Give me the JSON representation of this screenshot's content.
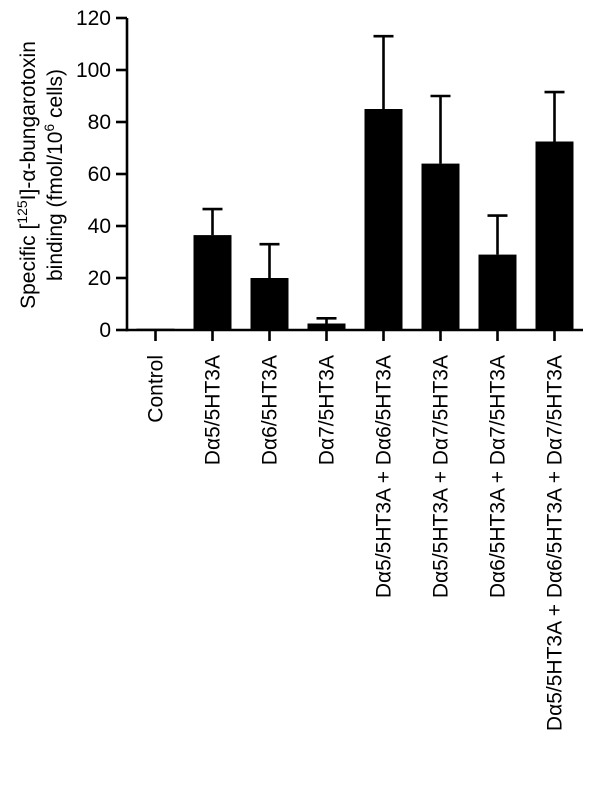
{
  "chart_data": {
    "type": "bar",
    "ylabel_line1_prefix": "Specific [",
    "ylabel_line1_sup": "125",
    "ylabel_line1_suffix": "I]-α-bungarotoxin",
    "ylabel_line2_prefix": "binding (fmol/10",
    "ylabel_line2_sup": "6",
    "ylabel_line2_suffix": " cells)",
    "xlabel": "",
    "ylim": [
      0,
      120
    ],
    "yticks": [
      0,
      20,
      40,
      60,
      80,
      100,
      120
    ],
    "categories": [
      "Control",
      "Dα5/5HT3A",
      "Dα6/5HT3A",
      "Dα7/5HT3A",
      "Dα5/5HT3A + Dα6/5HT3A",
      "Dα5/5HT3A + Dα7/5HT3A",
      "Dα6/5HT3A + Dα7/5HT3A",
      "Dα5/5HT3A + Dα6/5HT3A + Dα7/5HT3A"
    ],
    "values": [
      0.5,
      36.5,
      20,
      2.5,
      85,
      64,
      29,
      72.5
    ],
    "errors": [
      0,
      10,
      13,
      2,
      28,
      26,
      15,
      19
    ],
    "bar_color": "#000000",
    "grid": false,
    "legend": "none"
  }
}
